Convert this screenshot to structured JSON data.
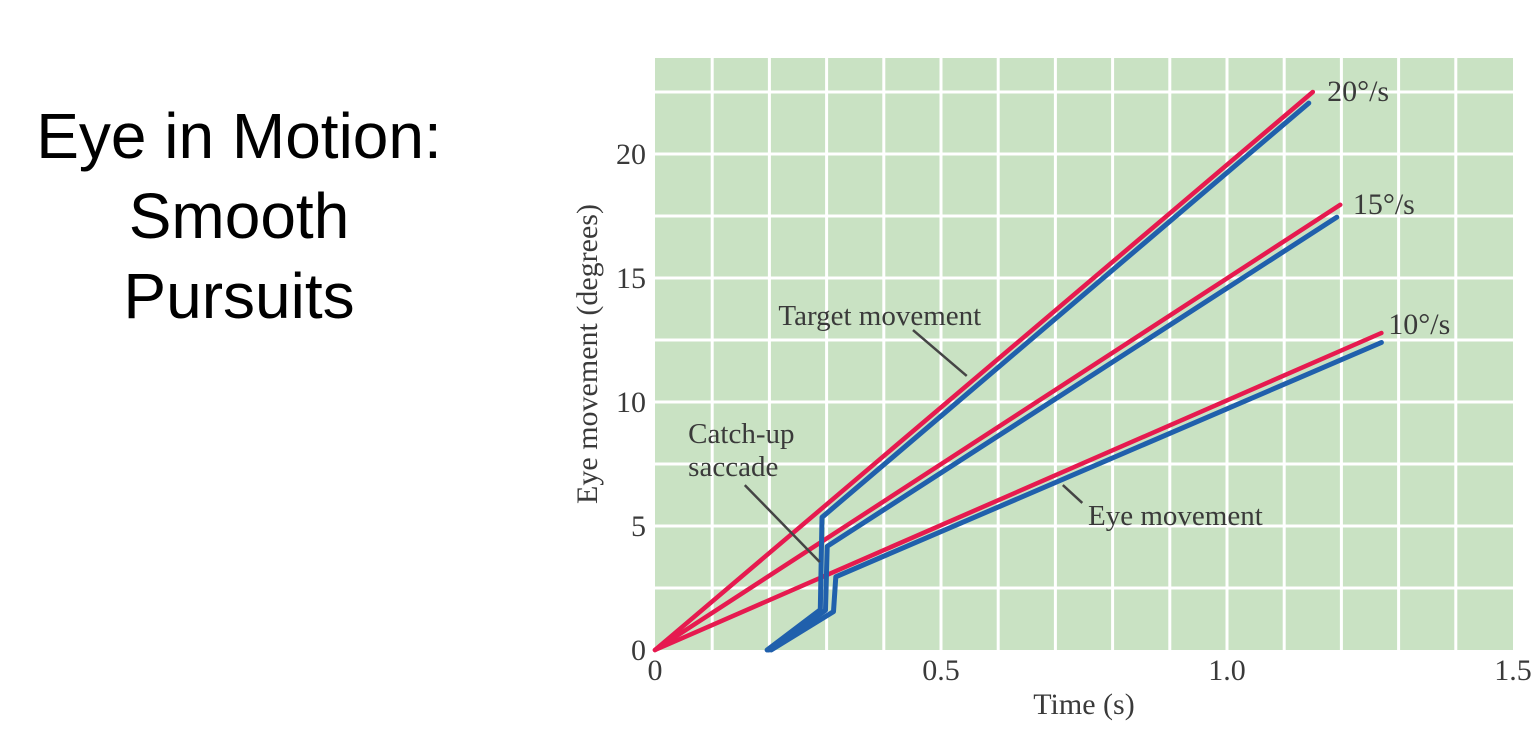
{
  "slide": {
    "title_lines": [
      "Eye in Motion:",
      "Smooth",
      "Pursuits"
    ]
  },
  "chart_data": {
    "type": "line",
    "title": "",
    "xlabel": "Time (s)",
    "ylabel": "Eye movement (degrees)",
    "xlim": [
      0,
      1.5
    ],
    "ylim": [
      0,
      23.87
    ],
    "grid": {
      "x_step": 0.1,
      "y_step": 2.5,
      "color": "#ffffff",
      "line_width": 3
    },
    "plot_bg": "#c9e2c3",
    "colors": {
      "target": "#e61a4f",
      "eye": "#2060ac",
      "text": "#3a3a3a",
      "pointer": "#454545"
    },
    "x_ticks": [
      {
        "value": 0,
        "label": "0"
      },
      {
        "value": 0.5,
        "label": "0.5"
      },
      {
        "value": 1.0,
        "label": "1.0"
      },
      {
        "value": 1.5,
        "label": "1.5"
      }
    ],
    "y_ticks": [
      {
        "value": 0,
        "label": "0"
      },
      {
        "value": 5,
        "label": "5"
      },
      {
        "value": 10,
        "label": "10"
      },
      {
        "value": 15,
        "label": "15"
      },
      {
        "value": 20,
        "label": "20"
      }
    ],
    "series": [
      {
        "name": "target-20",
        "role": "target",
        "speed": "20°/s",
        "points": [
          [
            0,
            0
          ],
          [
            1.15,
            22.5
          ]
        ]
      },
      {
        "name": "target-15",
        "role": "target",
        "speed": "15°/s",
        "points": [
          [
            0,
            0
          ],
          [
            1.198,
            17.95
          ]
        ]
      },
      {
        "name": "target-10",
        "role": "target",
        "speed": "10°/s",
        "points": [
          [
            0,
            0
          ],
          [
            1.27,
            12.78
          ]
        ]
      },
      {
        "name": "eye-20",
        "role": "eye",
        "speed": "20°/s",
        "points": [
          [
            0.196,
            0
          ],
          [
            0.289,
            1.62
          ],
          [
            0.292,
            5.35
          ],
          [
            1.143,
            22.05
          ]
        ]
      },
      {
        "name": "eye-15",
        "role": "eye",
        "speed": "15°/s",
        "points": [
          [
            0.199,
            0
          ],
          [
            0.298,
            1.6
          ],
          [
            0.301,
            4.18
          ],
          [
            1.192,
            17.45
          ]
        ]
      },
      {
        "name": "eye-10",
        "role": "eye",
        "speed": "10°/s",
        "points": [
          [
            0.203,
            0
          ],
          [
            0.312,
            1.55
          ],
          [
            0.316,
            2.95
          ],
          [
            1.27,
            12.4
          ]
        ]
      }
    ],
    "speed_labels": [
      {
        "text": "20°/s",
        "x": 1.175,
        "y": 22.14
      },
      {
        "text": "15°/s",
        "x": 1.22,
        "y": 17.58
      },
      {
        "text": "10°/s",
        "x": 1.282,
        "y": 12.74
      }
    ],
    "annotation_line_height_deg": 1.33,
    "annotations": [
      {
        "id": "target-movement",
        "lines": [
          "Target movement"
        ],
        "anchor": "middle",
        "x": 0.393,
        "y": 13.1,
        "pointer": [
          [
            0.451,
            12.9
          ],
          [
            0.545,
            11.05
          ]
        ]
      },
      {
        "id": "catch-up-saccade",
        "lines": [
          "Catch-up",
          "saccade"
        ],
        "anchor": "start",
        "x": 0.058,
        "y": 8.35,
        "pointer": [
          [
            0.157,
            6.65
          ],
          [
            0.288,
            3.55
          ]
        ]
      },
      {
        "id": "eye-movement",
        "lines": [
          "Eye movement"
        ],
        "anchor": "start",
        "x": 0.757,
        "y": 5.04,
        "pointer": [
          [
            0.713,
            6.65
          ],
          [
            0.747,
            5.93
          ]
        ]
      }
    ]
  }
}
